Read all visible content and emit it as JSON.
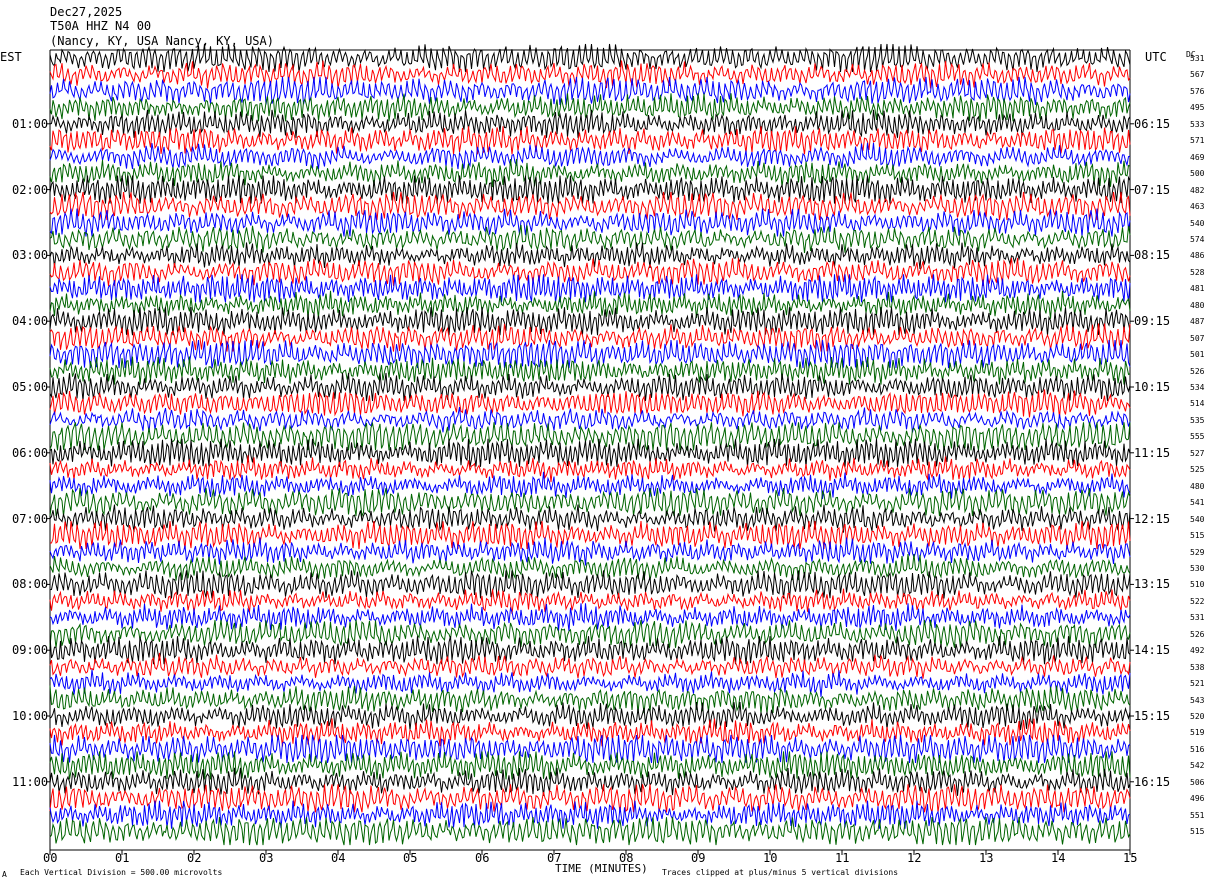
{
  "header": {
    "date": "Dec27,2025",
    "station": "T50A HHZ N4 00",
    "location": "(Nancy, KY, USA Nancy, KY, USA)"
  },
  "left_tz": "EST",
  "right_tz": "UTC",
  "dc_header": "DC",
  "footer": {
    "scale": "Each Vertical Division =  500.00 microvolts",
    "xaxis_title": "TIME (MINUTES)",
    "clip_note": "Traces clipped at plus/minus 5 vertical divisions",
    "corner_mark": "A"
  },
  "colors": {
    "trace_cycle": [
      "#000000",
      "#ff0000",
      "#0000ff",
      "#006400"
    ]
  },
  "chart_data": {
    "type": "line",
    "xlabel": "TIME (MINUTES)",
    "xlim": [
      0,
      15
    ],
    "x_ticks": [
      "00",
      "01",
      "02",
      "03",
      "04",
      "05",
      "06",
      "07",
      "08",
      "09",
      "10",
      "11",
      "12",
      "13",
      "14",
      "15"
    ],
    "left_hour_labels": [
      "01:00",
      "02:00",
      "03:00",
      "04:00",
      "05:00",
      "06:00",
      "07:00",
      "08:00",
      "09:00",
      "10:00",
      "11:00"
    ],
    "right_hour_labels": [
      "06:15",
      "07:15",
      "08:15",
      "09:15",
      "10:15",
      "11:15",
      "12:15",
      "13:15",
      "14:15",
      "15:15",
      "16:15"
    ],
    "dc_values": [
      531,
      567,
      576,
      495,
      533,
      571,
      469,
      500,
      482,
      463,
      540,
      574,
      486,
      528,
      481,
      480,
      487,
      507,
      501,
      526,
      534,
      514,
      535,
      555,
      527,
      525,
      480,
      541,
      540,
      515,
      529,
      530,
      510,
      522,
      531,
      526,
      492,
      538,
      521,
      543,
      520,
      519,
      516,
      542,
      506,
      496,
      551,
      515
    ],
    "traces_per_hour": 4,
    "trace_count": 48
  }
}
